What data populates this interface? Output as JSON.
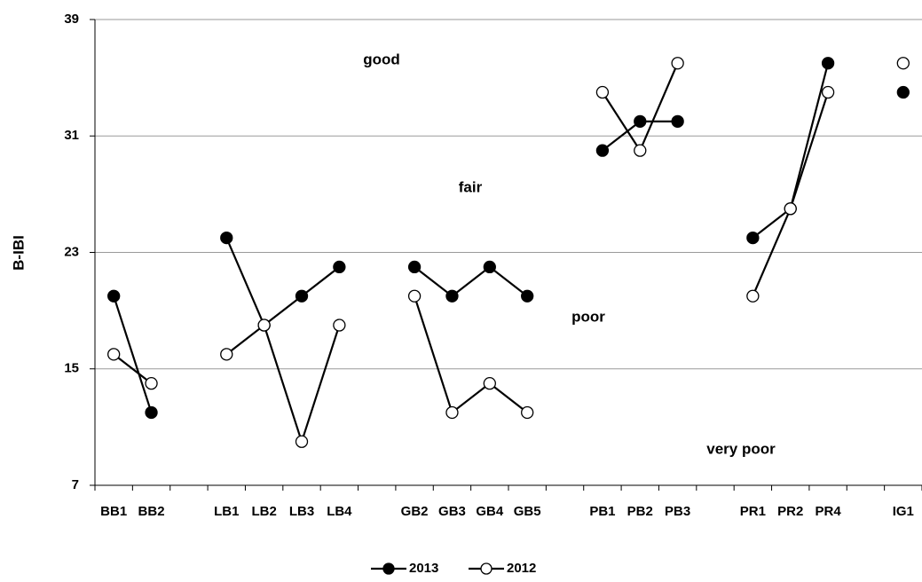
{
  "chart_data": {
    "type": "line",
    "ylabel": "B-IBI",
    "categories": [
      "BB1",
      "BB2",
      null,
      "LB1",
      "LB2",
      "LB3",
      "LB4",
      null,
      "GB2",
      "GB3",
      "GB4",
      "GB5",
      null,
      "PB1",
      "PB2",
      "PB3",
      null,
      "PR1",
      "PR2",
      "PR4",
      null,
      "IG1"
    ],
    "series": [
      {
        "name": "2013",
        "color": "#000000",
        "marker": "filled",
        "values": [
          20,
          12,
          null,
          24,
          18,
          20,
          22,
          null,
          22,
          20,
          22,
          20,
          null,
          30,
          32,
          32,
          null,
          24,
          26,
          36,
          null,
          34
        ]
      },
      {
        "name": "2012",
        "color": "#000000",
        "marker": "open",
        "values": [
          16,
          14,
          null,
          16,
          18,
          10,
          18,
          null,
          20,
          12,
          14,
          12,
          null,
          34,
          30,
          36,
          null,
          20,
          26,
          34,
          null,
          36
        ]
      }
    ],
    "ylim": [
      7,
      39
    ],
    "yticks": [
      7,
      15,
      23,
      31,
      39
    ],
    "grid": true,
    "annotations": [
      "good",
      "fair",
      "poor",
      "very poor"
    ],
    "legend": "bottom"
  }
}
